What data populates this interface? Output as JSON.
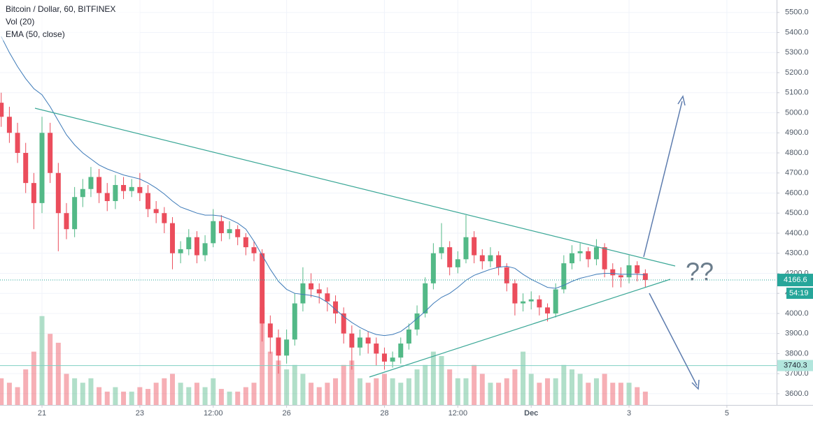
{
  "chart_data": {
    "type": "candlestick",
    "title": "Bitcoin / Dollar, 60, BITFINEX",
    "indicators": [
      "Vol (20)",
      "EMA (50, close)"
    ],
    "annotation": "??",
    "up_color": "#53b987",
    "down_color": "#eb4d5c",
    "ema_color": "#3d7ab8",
    "grid": true,
    "xlim": [
      3.4,
      384.4
    ],
    "xticks": [
      {
        "value": 24,
        "label": "21"
      },
      {
        "value": 72,
        "label": "23"
      },
      {
        "value": 108,
        "label": "12:00"
      },
      {
        "value": 144,
        "label": "26"
      },
      {
        "value": 192,
        "label": "28"
      },
      {
        "value": 228,
        "label": "12:00"
      },
      {
        "value": 264,
        "label": "Dec"
      },
      {
        "value": 312,
        "label": "3"
      },
      {
        "value": 360,
        "label": "5"
      }
    ],
    "ylim": [
      3544,
      5562
    ],
    "yticks": [
      {
        "value": 3600,
        "label": "3600.0"
      },
      {
        "value": 3700,
        "label": "3700.0"
      },
      {
        "value": 3800,
        "label": "3800.0"
      },
      {
        "value": 3900,
        "label": "3900.0"
      },
      {
        "value": 4000,
        "label": "4000.0"
      },
      {
        "value": 4100,
        "label": "4100.0"
      },
      {
        "value": 4200,
        "label": "4200.0"
      },
      {
        "value": 4300,
        "label": "4300.0"
      },
      {
        "value": 4400,
        "label": "4400.0"
      },
      {
        "value": 4500,
        "label": "4500.0"
      },
      {
        "value": 4600,
        "label": "4600.0"
      },
      {
        "value": 4700,
        "label": "4700.0"
      },
      {
        "value": 4800,
        "label": "4800.0"
      },
      {
        "value": 4900,
        "label": "4900.0"
      },
      {
        "value": 5000,
        "label": "5000.0"
      },
      {
        "value": 5100,
        "label": "5100.0"
      },
      {
        "value": 5200,
        "label": "5200.0"
      },
      {
        "value": 5300,
        "label": "5300.0"
      },
      {
        "value": 5400,
        "label": "5400.0"
      },
      {
        "value": 5500,
        "label": "5500.0"
      }
    ],
    "last_price": 4166.6,
    "countdown": "54:19",
    "level": 3740.3,
    "x": [
      4,
      8,
      12,
      16,
      20,
      24,
      28,
      32,
      36,
      40,
      44,
      48,
      52,
      56,
      60,
      64,
      68,
      72,
      76,
      80,
      84,
      88,
      92,
      96,
      100,
      104,
      108,
      112,
      116,
      120,
      124,
      128,
      132,
      136,
      140,
      144,
      148,
      152,
      156,
      160,
      164,
      168,
      172,
      176,
      180,
      184,
      188,
      192,
      196,
      200,
      204,
      208,
      212,
      216,
      220,
      224,
      228,
      232,
      236,
      240,
      244,
      248,
      252,
      256,
      260,
      264,
      268,
      272,
      276,
      280,
      284,
      288,
      292,
      296,
      300,
      304,
      308,
      312,
      316,
      320
    ],
    "open": [
      5050,
      4980,
      4900,
      4800,
      4650,
      4550,
      4900,
      4700,
      4500,
      4420,
      4580,
      4620,
      4680,
      4600,
      4560,
      4640,
      4610,
      4630,
      4600,
      4520,
      4500,
      4450,
      4300,
      4320,
      4380,
      4290,
      4350,
      4460,
      4400,
      4420,
      4380,
      4330,
      4300,
      3950,
      3880,
      3790,
      3870,
      4050,
      4150,
      4120,
      4100,
      4060,
      4000,
      3900,
      3830,
      3880,
      3850,
      3800,
      3760,
      3780,
      3850,
      3920,
      4000,
      4150,
      4300,
      4330,
      4230,
      4270,
      4380,
      4290,
      4260,
      4290,
      4230,
      4150,
      4050,
      4060,
      4070,
      4030,
      4000,
      4120,
      4250,
      4300,
      4310,
      4270,
      4330,
      4220,
      4190,
      4180,
      4240,
      4200
    ],
    "high": [
      5100,
      5030,
      4950,
      4850,
      4700,
      4980,
      4950,
      4750,
      4550,
      4630,
      4670,
      4730,
      4720,
      4650,
      4690,
      4680,
      4670,
      4700,
      4640,
      4560,
      4530,
      4480,
      4360,
      4420,
      4410,
      4390,
      4520,
      4490,
      4460,
      4440,
      4400,
      4360,
      4320,
      3990,
      3920,
      3920,
      4100,
      4230,
      4200,
      4150,
      4130,
      4090,
      4030,
      3940,
      3920,
      3910,
      3880,
      3830,
      3810,
      3880,
      3950,
      4040,
      4180,
      4350,
      4450,
      4360,
      4310,
      4490,
      4410,
      4320,
      4330,
      4310,
      4250,
      4170,
      4100,
      4110,
      4090,
      4050,
      4150,
      4290,
      4340,
      4350,
      4330,
      4370,
      4350,
      4250,
      4230,
      4290,
      4260,
      4220
    ],
    "low": [
      4930,
      4850,
      4750,
      4600,
      4420,
      4500,
      4650,
      4310,
      4370,
      4380,
      4530,
      4580,
      4550,
      4510,
      4520,
      4570,
      4580,
      4560,
      4480,
      4450,
      4400,
      4220,
      4250,
      4290,
      4250,
      4260,
      4330,
      4360,
      4370,
      4340,
      4290,
      4260,
      3860,
      3800,
      3700,
      3750,
      3840,
      4010,
      4080,
      4050,
      4010,
      3950,
      3850,
      3720,
      3790,
      3800,
      3740,
      3720,
      3730,
      3750,
      3820,
      3890,
      3980,
      4120,
      4270,
      4190,
      4200,
      4250,
      4250,
      4220,
      4230,
      4190,
      4110,
      3990,
      4010,
      4020,
      3990,
      3960,
      3980,
      4100,
      4220,
      4260,
      4230,
      4240,
      4180,
      4130,
      4130,
      4150,
      4160,
      4130
    ],
    "close": [
      4980,
      4900,
      4800,
      4650,
      4550,
      4900,
      4700,
      4500,
      4420,
      4580,
      4620,
      4680,
      4600,
      4560,
      4640,
      4610,
      4630,
      4600,
      4520,
      4500,
      4450,
      4300,
      4320,
      4380,
      4290,
      4350,
      4460,
      4400,
      4420,
      4380,
      4330,
      4300,
      3950,
      3880,
      3790,
      3870,
      4050,
      4150,
      4120,
      4100,
      4060,
      4000,
      3900,
      3830,
      3880,
      3850,
      3800,
      3760,
      3780,
      3850,
      3920,
      4000,
      4150,
      4300,
      4330,
      4230,
      4270,
      4380,
      4290,
      4260,
      4290,
      4230,
      4150,
      4050,
      4060,
      4070,
      4030,
      4000,
      4120,
      4250,
      4300,
      4310,
      4270,
      4330,
      4220,
      4190,
      4180,
      4240,
      4200,
      4166.6
    ],
    "volume": [
      30,
      25,
      20,
      40,
      60,
      100,
      80,
      70,
      35,
      30,
      25,
      30,
      20,
      15,
      20,
      15,
      15,
      20,
      18,
      25,
      30,
      35,
      25,
      20,
      25,
      20,
      30,
      18,
      15,
      15,
      20,
      25,
      110,
      60,
      50,
      40,
      45,
      35,
      25,
      20,
      25,
      30,
      45,
      50,
      30,
      25,
      30,
      35,
      30,
      25,
      30,
      40,
      45,
      60,
      55,
      40,
      30,
      30,
      45,
      35,
      25,
      25,
      30,
      40,
      60,
      35,
      25,
      30,
      30,
      45,
      40,
      35,
      25,
      30,
      35,
      25,
      25,
      25,
      20,
      15
    ],
    "ema": [
      5380,
      5300,
      5230,
      5170,
      5120,
      5090,
      5030,
      4960,
      4890,
      4840,
      4800,
      4770,
      4740,
      4720,
      4705,
      4690,
      4680,
      4670,
      4650,
      4625,
      4595,
      4560,
      4530,
      4515,
      4500,
      4490,
      4490,
      4485,
      4470,
      4450,
      4420,
      4360,
      4290,
      4220,
      4160,
      4120,
      4100,
      4095,
      4090,
      4080,
      4055,
      4020,
      3985,
      3955,
      3930,
      3910,
      3895,
      3890,
      3895,
      3910,
      3940,
      3975,
      4010,
      4050,
      4080,
      4100,
      4130,
      4165,
      4190,
      4205,
      4220,
      4230,
      4235,
      4225,
      4195,
      4170,
      4150,
      4130,
      4125,
      4140,
      4160,
      4175,
      4185,
      4195,
      4200,
      4200,
      4195,
      4195,
      4195,
      4192
    ]
  }
}
